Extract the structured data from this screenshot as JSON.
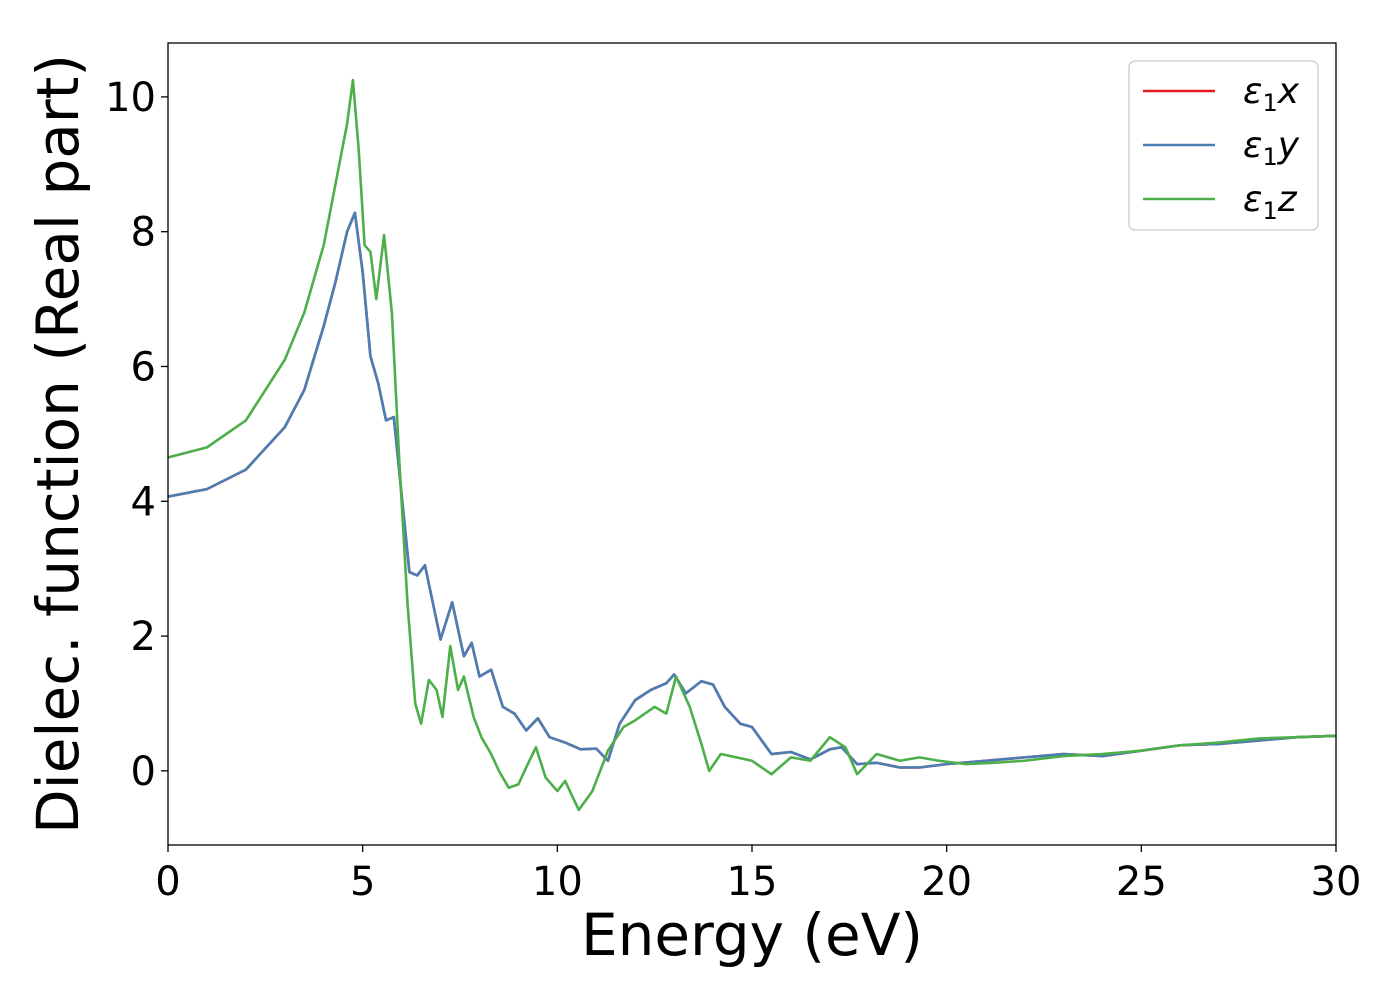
{
  "chart_data": {
    "type": "line",
    "title": "",
    "xlabel": "Energy (eV)",
    "ylabel": "Dielec. function (Real part)",
    "xlim": [
      0,
      30
    ],
    "ylim": [
      -1.1,
      10.8
    ],
    "xticks": [
      0,
      5,
      10,
      15,
      20,
      25,
      30
    ],
    "yticks": [
      0,
      2,
      4,
      6,
      8,
      10
    ],
    "grid": false,
    "legend": {
      "position": "top-right"
    },
    "series": [
      {
        "name_sym": "ε",
        "name_sub": "1",
        "name_var": "x",
        "color": "#e41a1c",
        "x": [
          0,
          1,
          2,
          3,
          3.5,
          4,
          4.3,
          4.6,
          4.8,
          5.0,
          5.2,
          5.4,
          5.6,
          5.8,
          6.0,
          6.2,
          6.4,
          6.6,
          6.8,
          7.0,
          7.3,
          7.6,
          7.8,
          8.0,
          8.3,
          8.6,
          8.9,
          9.2,
          9.5,
          9.8,
          10.2,
          10.6,
          11.0,
          11.3,
          11.6,
          12.0,
          12.4,
          12.8,
          13.0,
          13.3,
          13.7,
          14.0,
          14.3,
          14.7,
          15.0,
          15.5,
          16.0,
          16.5,
          17.0,
          17.3,
          17.7,
          18.2,
          18.8,
          19.3,
          20.0,
          21.0,
          22.0,
          23.0,
          24.0,
          25.0,
          26.0,
          27.0,
          28.0,
          29.0,
          30.0
        ],
        "y": [
          4.07,
          4.18,
          4.47,
          5.1,
          5.65,
          6.6,
          7.25,
          8.0,
          8.28,
          7.4,
          6.15,
          5.75,
          5.2,
          5.25,
          4.1,
          2.95,
          2.9,
          3.05,
          2.5,
          1.95,
          2.5,
          1.7,
          1.9,
          1.4,
          1.5,
          0.95,
          0.85,
          0.6,
          0.78,
          0.5,
          0.42,
          0.32,
          0.33,
          0.15,
          0.7,
          1.05,
          1.2,
          1.3,
          1.43,
          1.15,
          1.33,
          1.28,
          0.95,
          0.7,
          0.65,
          0.25,
          0.28,
          0.17,
          0.32,
          0.35,
          0.1,
          0.12,
          0.05,
          0.05,
          0.1,
          0.15,
          0.2,
          0.25,
          0.22,
          0.3,
          0.38,
          0.4,
          0.45,
          0.5,
          0.52
        ]
      },
      {
        "name_sym": "ε",
        "name_sub": "1",
        "name_var": "y",
        "color": "#4a7fb5",
        "x": [
          0,
          1,
          2,
          3,
          3.5,
          4,
          4.3,
          4.6,
          4.8,
          5.0,
          5.2,
          5.4,
          5.6,
          5.8,
          6.0,
          6.2,
          6.4,
          6.6,
          6.8,
          7.0,
          7.3,
          7.6,
          7.8,
          8.0,
          8.3,
          8.6,
          8.9,
          9.2,
          9.5,
          9.8,
          10.2,
          10.6,
          11.0,
          11.3,
          11.6,
          12.0,
          12.4,
          12.8,
          13.0,
          13.3,
          13.7,
          14.0,
          14.3,
          14.7,
          15.0,
          15.5,
          16.0,
          16.5,
          17.0,
          17.3,
          17.7,
          18.2,
          18.8,
          19.3,
          20.0,
          21.0,
          22.0,
          23.0,
          24.0,
          25.0,
          26.0,
          27.0,
          28.0,
          29.0,
          30.0
        ],
        "y": [
          4.07,
          4.18,
          4.47,
          5.1,
          5.65,
          6.6,
          7.25,
          8.0,
          8.28,
          7.4,
          6.15,
          5.75,
          5.2,
          5.25,
          4.1,
          2.95,
          2.9,
          3.05,
          2.5,
          1.95,
          2.5,
          1.7,
          1.9,
          1.4,
          1.5,
          0.95,
          0.85,
          0.6,
          0.78,
          0.5,
          0.42,
          0.32,
          0.33,
          0.15,
          0.7,
          1.05,
          1.2,
          1.3,
          1.43,
          1.15,
          1.33,
          1.28,
          0.95,
          0.7,
          0.65,
          0.25,
          0.28,
          0.17,
          0.32,
          0.35,
          0.1,
          0.12,
          0.05,
          0.05,
          0.1,
          0.15,
          0.2,
          0.25,
          0.22,
          0.3,
          0.38,
          0.4,
          0.45,
          0.5,
          0.52
        ]
      },
      {
        "name_sym": "ε",
        "name_sub": "1",
        "name_var": "z",
        "color": "#4daf4a",
        "x": [
          0,
          1,
          2,
          3,
          3.5,
          4,
          4.3,
          4.6,
          4.75,
          4.9,
          5.05,
          5.2,
          5.35,
          5.55,
          5.75,
          5.95,
          6.15,
          6.35,
          6.5,
          6.7,
          6.9,
          7.05,
          7.25,
          7.45,
          7.6,
          7.85,
          8.05,
          8.3,
          8.5,
          8.75,
          9.0,
          9.2,
          9.45,
          9.7,
          10.0,
          10.2,
          10.55,
          10.9,
          11.3,
          11.7,
          12.0,
          12.5,
          12.8,
          13.05,
          13.4,
          13.7,
          13.9,
          14.2,
          14.6,
          15.0,
          15.5,
          16.0,
          16.5,
          17.0,
          17.4,
          17.7,
          18.2,
          18.8,
          19.3,
          19.8,
          20.5,
          21.2,
          22.0,
          23.0,
          24.0,
          25.0,
          26.0,
          27.0,
          28.0,
          29.0,
          30.0
        ],
        "y": [
          4.65,
          4.8,
          5.2,
          6.1,
          6.8,
          7.8,
          8.7,
          9.6,
          10.25,
          9.2,
          7.8,
          7.7,
          7.0,
          7.95,
          6.8,
          4.5,
          2.5,
          1.0,
          0.7,
          1.35,
          1.2,
          0.8,
          1.85,
          1.2,
          1.4,
          0.8,
          0.5,
          0.25,
          0.0,
          -0.25,
          -0.2,
          0.05,
          0.35,
          -0.1,
          -0.3,
          -0.15,
          -0.58,
          -0.3,
          0.3,
          0.65,
          0.75,
          0.95,
          0.85,
          1.4,
          0.95,
          0.4,
          0.0,
          0.25,
          0.2,
          0.15,
          -0.05,
          0.2,
          0.15,
          0.5,
          0.35,
          -0.05,
          0.25,
          0.15,
          0.2,
          0.15,
          0.1,
          0.12,
          0.15,
          0.22,
          0.25,
          0.3,
          0.38,
          0.42,
          0.48,
          0.5,
          0.52
        ]
      }
    ]
  }
}
